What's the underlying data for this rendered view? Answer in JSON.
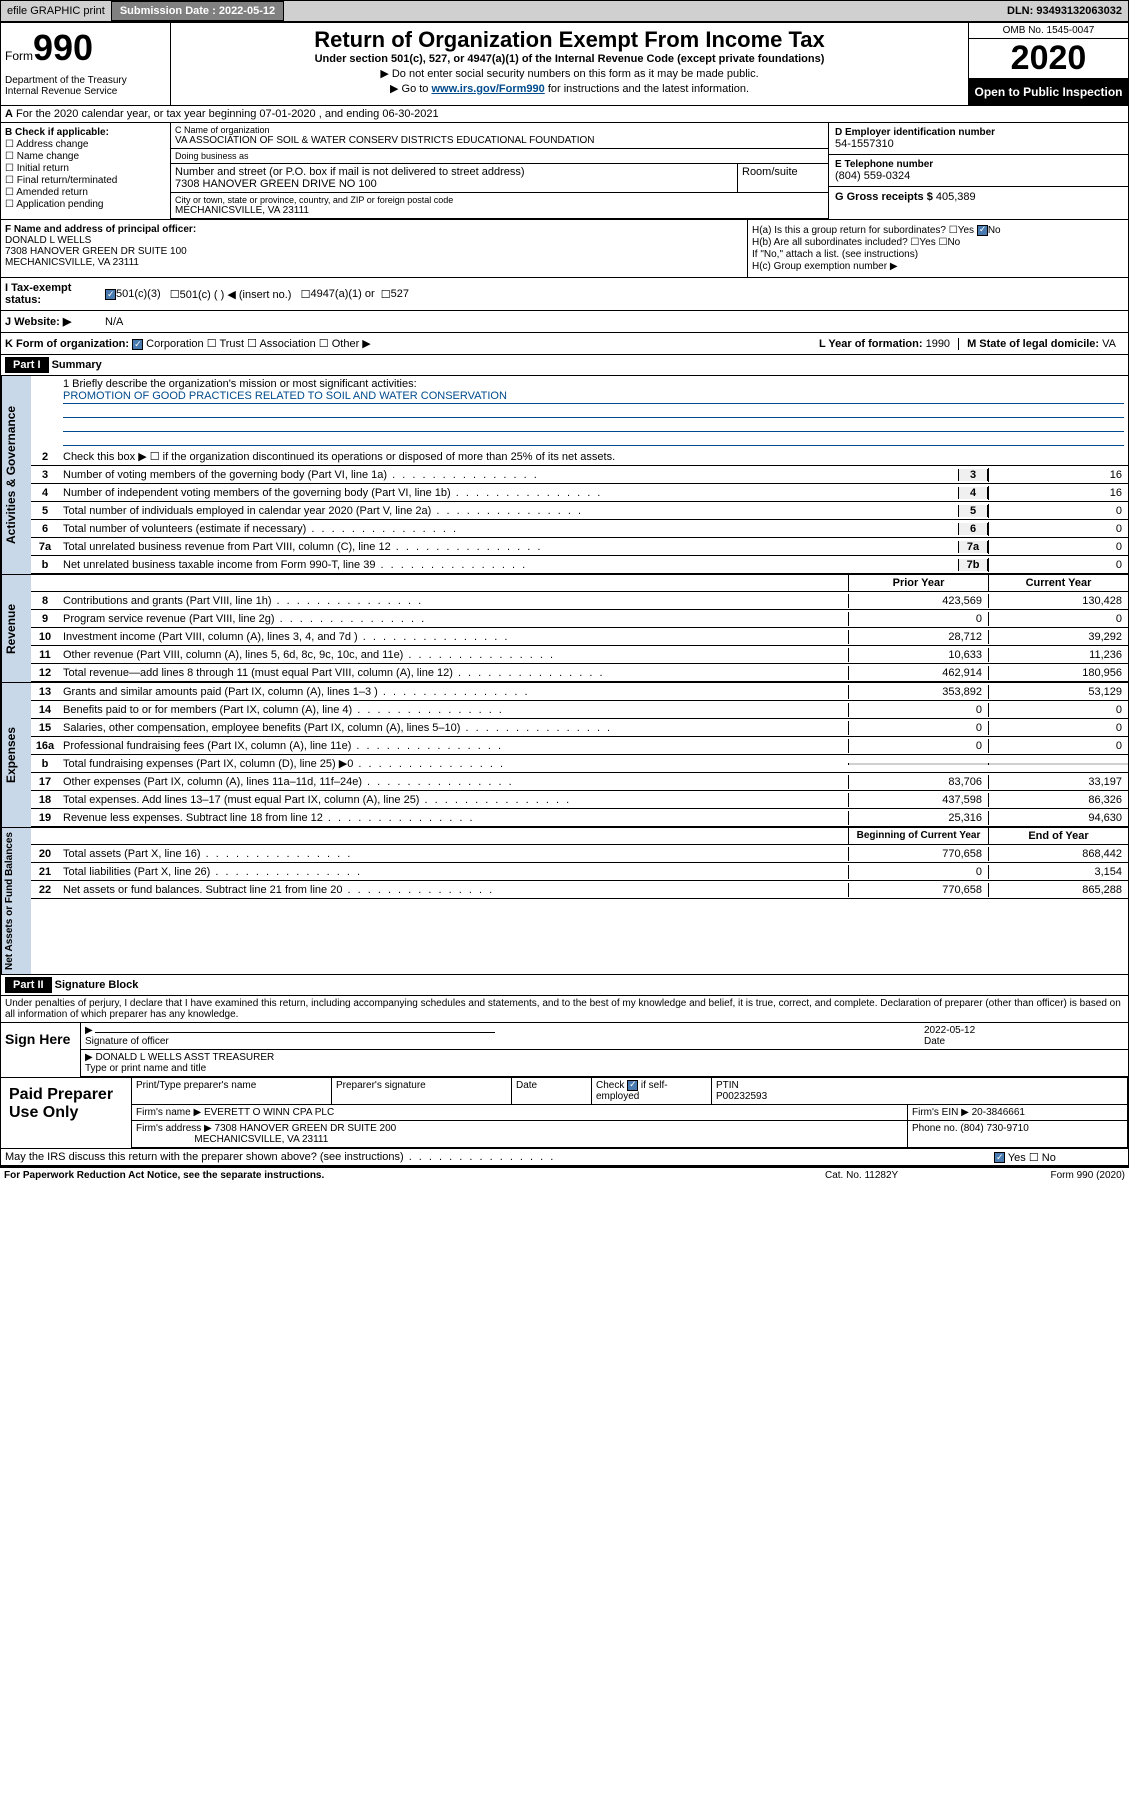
{
  "topbar": {
    "efile": "efile GRAPHIC print",
    "submission_label": "Submission Date : 2022-05-12",
    "dln": "DLN: 93493132063032"
  },
  "header": {
    "form_word": "Form",
    "form_num": "990",
    "dept": "Department of the Treasury\nInternal Revenue Service",
    "title": "Return of Organization Exempt From Income Tax",
    "subtitle": "Under section 501(c), 527, or 4947(a)(1) of the Internal Revenue Code (except private foundations)",
    "note1": "▶ Do not enter social security numbers on this form as it may be made public.",
    "note2_pre": "▶ Go to ",
    "note2_link": "www.irs.gov/Form990",
    "note2_post": " for instructions and the latest information.",
    "omb": "OMB No. 1545-0047",
    "year": "2020",
    "open": "Open to Public Inspection"
  },
  "period": {
    "text": "For the 2020 calendar year, or tax year beginning 07-01-2020     , and ending 06-30-2021"
  },
  "colB": {
    "label": "B Check if applicable:",
    "items": [
      "Address change",
      "Name change",
      "Initial return",
      "Final return/terminated",
      "Amended return",
      "Application pending"
    ]
  },
  "org": {
    "name_lbl": "C Name of organization",
    "name": "VA ASSOCIATION OF SOIL & WATER CONSERV DISTRICTS EDUCATIONAL FOUNDATION",
    "dba_lbl": "Doing business as",
    "dba": "",
    "street_lbl": "Number and street (or P.O. box if mail is not delivered to street address)",
    "street": "7308 HANOVER GREEN DRIVE NO 100",
    "room_lbl": "Room/suite",
    "city_lbl": "City or town, state or province, country, and ZIP or foreign postal code",
    "city": "MECHANICSVILLE, VA  23111"
  },
  "right": {
    "ein_lbl": "D Employer identification number",
    "ein": "54-1557310",
    "tel_lbl": "E Telephone number",
    "tel": "(804) 559-0324",
    "gross_lbl": "G Gross receipts $ ",
    "gross": "405,389"
  },
  "f": {
    "lbl": "F Name and address of principal officer:",
    "name": "DONALD L WELLS",
    "addr1": "7308 HANOVER GREEN DR SUITE 100",
    "addr2": "MECHANICSVILLE, VA  23111"
  },
  "h": {
    "ha": "H(a)  Is this a group return for subordinates?",
    "ha_ans": "No",
    "hb": "H(b)  Are all subordinates included?",
    "hb_note": "If \"No,\" attach a list. (see instructions)",
    "hc": "H(c)  Group exemption number ▶"
  },
  "tax": {
    "lbl": "I   Tax-exempt status:",
    "opt1": "501(c)(3)",
    "opt2": "501(c) (   ) ◀ (insert no.)",
    "opt3": "4947(a)(1) or",
    "opt4": "527"
  },
  "web": {
    "lbl": "J   Website: ▶",
    "val": "N/A"
  },
  "k": {
    "lbl": "K Form of organization:",
    "opts": [
      "Corporation",
      "Trust",
      "Association",
      "Other ▶"
    ],
    "l_lbl": "L Year of formation: ",
    "l_val": "1990",
    "m_lbl": "M State of legal domicile: ",
    "m_val": "VA"
  },
  "part1": {
    "hdr": "Part I",
    "title": "Summary"
  },
  "gov": {
    "label": "Activities & Governance",
    "l1_lbl": "1   Briefly describe the organization's mission or most significant activities:",
    "l1_val": "PROMOTION OF GOOD PRACTICES RELATED TO SOIL AND WATER CONSERVATION",
    "l2": "Check this box ▶ ☐  if the organization discontinued its operations or disposed of more than 25% of its net assets.",
    "lines": [
      {
        "no": "3",
        "desc": "Number of voting members of the governing body (Part VI, line 1a)",
        "box": "3",
        "val": "16"
      },
      {
        "no": "4",
        "desc": "Number of independent voting members of the governing body (Part VI, line 1b)",
        "box": "4",
        "val": "16"
      },
      {
        "no": "5",
        "desc": "Total number of individuals employed in calendar year 2020 (Part V, line 2a)",
        "box": "5",
        "val": "0"
      },
      {
        "no": "6",
        "desc": "Total number of volunteers (estimate if necessary)",
        "box": "6",
        "val": "0"
      },
      {
        "no": "7a",
        "desc": "Total unrelated business revenue from Part VIII, column (C), line 12",
        "box": "7a",
        "val": "0"
      },
      {
        "no": "b",
        "desc": "Net unrelated business taxable income from Form 990-T, line 39",
        "box": "7b",
        "val": "0"
      }
    ]
  },
  "rev": {
    "label": "Revenue",
    "hdr1": "Prior Year",
    "hdr2": "Current Year",
    "lines": [
      {
        "no": "8",
        "desc": "Contributions and grants (Part VIII, line 1h)",
        "v1": "423,569",
        "v2": "130,428"
      },
      {
        "no": "9",
        "desc": "Program service revenue (Part VIII, line 2g)",
        "v1": "0",
        "v2": "0"
      },
      {
        "no": "10",
        "desc": "Investment income (Part VIII, column (A), lines 3, 4, and 7d )",
        "v1": "28,712",
        "v2": "39,292"
      },
      {
        "no": "11",
        "desc": "Other revenue (Part VIII, column (A), lines 5, 6d, 8c, 9c, 10c, and 11e)",
        "v1": "10,633",
        "v2": "11,236"
      },
      {
        "no": "12",
        "desc": "Total revenue—add lines 8 through 11 (must equal Part VIII, column (A), line 12)",
        "v1": "462,914",
        "v2": "180,956"
      }
    ]
  },
  "exp": {
    "label": "Expenses",
    "lines": [
      {
        "no": "13",
        "desc": "Grants and similar amounts paid (Part IX, column (A), lines 1–3 )",
        "v1": "353,892",
        "v2": "53,129"
      },
      {
        "no": "14",
        "desc": "Benefits paid to or for members (Part IX, column (A), line 4)",
        "v1": "0",
        "v2": "0"
      },
      {
        "no": "15",
        "desc": "Salaries, other compensation, employee benefits (Part IX, column (A), lines 5–10)",
        "v1": "0",
        "v2": "0"
      },
      {
        "no": "16a",
        "desc": "Professional fundraising fees (Part IX, column (A), line 11e)",
        "v1": "0",
        "v2": "0"
      },
      {
        "no": "b",
        "desc": "Total fundraising expenses (Part IX, column (D), line 25) ▶0",
        "v1": "",
        "v2": "",
        "shade": true
      },
      {
        "no": "17",
        "desc": "Other expenses (Part IX, column (A), lines 11a–11d, 11f–24e)",
        "v1": "83,706",
        "v2": "33,197"
      },
      {
        "no": "18",
        "desc": "Total expenses. Add lines 13–17 (must equal Part IX, column (A), line 25)",
        "v1": "437,598",
        "v2": "86,326"
      },
      {
        "no": "19",
        "desc": "Revenue less expenses. Subtract line 18 from line 12",
        "v1": "25,316",
        "v2": "94,630"
      }
    ]
  },
  "net": {
    "label": "Net Assets or Fund Balances",
    "hdr1": "Beginning of Current Year",
    "hdr2": "End of Year",
    "lines": [
      {
        "no": "20",
        "desc": "Total assets (Part X, line 16)",
        "v1": "770,658",
        "v2": "868,442"
      },
      {
        "no": "21",
        "desc": "Total liabilities (Part X, line 26)",
        "v1": "0",
        "v2": "3,154"
      },
      {
        "no": "22",
        "desc": "Net assets or fund balances. Subtract line 21 from line 20",
        "v1": "770,658",
        "v2": "865,288"
      }
    ]
  },
  "part2": {
    "hdr": "Part II",
    "title": "Signature Block"
  },
  "sig": {
    "penalty": "Under penalties of perjury, I declare that I have examined this return, including accompanying schedules and statements, and to the best of my knowledge and belief, it is true, correct, and complete. Declaration of preparer (other than officer) is based on all information of which preparer has any knowledge.",
    "sign_here": "Sign Here",
    "sig_officer": "Signature of officer",
    "date_lbl": "Date",
    "date": "2022-05-12",
    "name_title": "DONALD L WELLS  ASST TREASURER",
    "type_lbl": "Type or print name and title"
  },
  "prep": {
    "lbl": "Paid Preparer Use Only",
    "h1": "Print/Type preparer's name",
    "h2": "Preparer's signature",
    "h3": "Date",
    "h4_pre": "Check ",
    "h4_post": " if self-employed",
    "h5": "PTIN",
    "ptin": "P00232593",
    "firm_lbl": "Firm's name     ▶ ",
    "firm": "EVERETT O WINN CPA PLC",
    "ein_lbl": "Firm's EIN ▶ ",
    "ein": "20-3846661",
    "addr_lbl": "Firm's address ▶ ",
    "addr1": "7308 HANOVER GREEN DR SUITE 200",
    "addr2": "MECHANICSVILLE, VA  23111",
    "phone_lbl": "Phone no. ",
    "phone": "(804) 730-9710",
    "discuss": "May the IRS discuss this return with the preparer shown above? (see instructions)"
  },
  "footer": {
    "paperwork": "For Paperwork Reduction Act Notice, see the separate instructions.",
    "cat": "Cat. No. 11282Y",
    "form": "Form 990 (2020)"
  }
}
